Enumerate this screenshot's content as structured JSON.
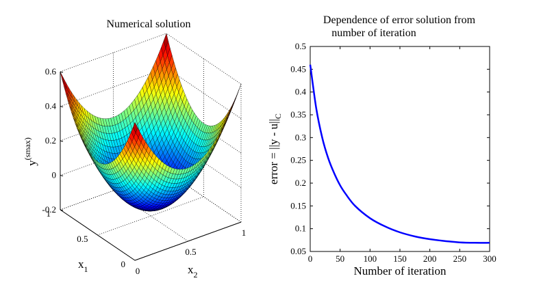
{
  "chart_data": [
    {
      "type": "surface",
      "title": "Numerical solution",
      "zlabel_main": "y",
      "zlabel_sup": "(smax)",
      "x1label_main": "x",
      "x1label_sub": "1",
      "x2label_main": "x",
      "x2label_sub": "2",
      "zlim": [
        -0.2,
        0.6
      ],
      "zticks": [
        "-0.2",
        "0",
        "0.2",
        "0.4",
        "0.6"
      ],
      "x1ticks": [
        "0",
        "0.5",
        "1"
      ],
      "x2ticks": [
        "0",
        "0.5",
        "1"
      ],
      "x1lim": [
        0,
        1
      ],
      "x2lim": [
        0,
        1
      ],
      "grid": true,
      "colormap": "jet",
      "surface_formula": "1.5*((x1-0.5)^2+(x2-0.5)^2) - 0.15",
      "corner_values": {
        "x1_0_x2_0": 0.6,
        "x1_1_x2_1": 0.6,
        "x1_1_x2_0": 0.6,
        "x1_0_x2_1": 0.6
      },
      "min_value": -0.15
    },
    {
      "type": "line",
      "title_line1": "Dependence of error solution from",
      "title_line2": "number of iteration",
      "xlabel": "Number of iteration",
      "ylabel_main": "error = ||y - u||",
      "ylabel_sub": "C",
      "xlim": [
        0,
        300
      ],
      "ylim": [
        0.05,
        0.5
      ],
      "xticks": [
        "0",
        "50",
        "100",
        "150",
        "200",
        "250",
        "300"
      ],
      "yticks": [
        "0.05",
        "0.1",
        "0.15",
        "0.2",
        "0.25",
        "0.3",
        "0.35",
        "0.4",
        "0.45",
        "0.5"
      ],
      "grid": false,
      "series": [
        {
          "color": "#0000ff",
          "x": [
            0,
            10,
            20,
            30,
            40,
            50,
            60,
            75,
            100,
            125,
            150,
            175,
            200,
            225,
            250,
            275,
            300
          ],
          "y": [
            0.46,
            0.365,
            0.3,
            0.255,
            0.222,
            0.195,
            0.175,
            0.15,
            0.123,
            0.105,
            0.092,
            0.083,
            0.077,
            0.073,
            0.07,
            0.069,
            0.069
          ]
        }
      ]
    }
  ]
}
